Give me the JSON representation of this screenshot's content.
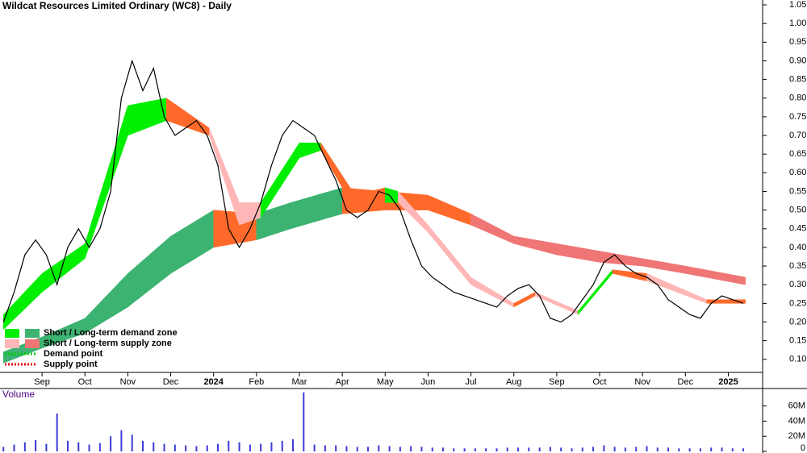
{
  "chart_data": [
    {
      "type": "line",
      "title": "Wildcat Resources Limited Ordinary (WC8) - Daily",
      "xlim": [
        -0.98,
        16.8
      ],
      "xticks": [
        {
          "value": 0,
          "label": "Sep"
        },
        {
          "value": 1,
          "label": "Oct"
        },
        {
          "value": 2,
          "label": "Nov"
        },
        {
          "value": 3,
          "label": "Dec"
        },
        {
          "value": 4,
          "label": "2024"
        },
        {
          "value": 5,
          "label": "Feb"
        },
        {
          "value": 6,
          "label": "Mar"
        },
        {
          "value": 7,
          "label": "Apr"
        },
        {
          "value": 8,
          "label": "May"
        },
        {
          "value": 9,
          "label": "Jun"
        },
        {
          "value": 10,
          "label": "Jul"
        },
        {
          "value": 11,
          "label": "Aug"
        },
        {
          "value": 12,
          "label": "Sep"
        },
        {
          "value": 13,
          "label": "Oct"
        },
        {
          "value": 14,
          "label": "Nov"
        },
        {
          "value": 15,
          "label": "Dec"
        },
        {
          "value": 16,
          "label": "2025"
        }
      ],
      "ylim": [
        0.065,
        1.063
      ],
      "yticks": [
        {
          "value": 0.1,
          "label": "0.10"
        },
        0.15,
        {
          "value": 0.2,
          "label": "0.20"
        },
        0.25,
        {
          "value": 0.3,
          "label": "0.30"
        },
        0.35,
        {
          "value": 0.4,
          "label": "0.40"
        },
        0.45,
        {
          "value": 0.5,
          "label": "0.50"
        },
        0.55,
        {
          "value": 0.6,
          "label": "0.60"
        },
        0.65,
        {
          "value": 0.7,
          "label": "0.70"
        },
        0.75,
        {
          "value": 0.8,
          "label": "0.80"
        },
        0.85,
        {
          "value": 0.9,
          "label": "0.90"
        },
        0.95,
        {
          "value": 1,
          "label": "1.00"
        },
        1.05
      ],
      "series": [
        {
          "name": "Price",
          "color": "#000000",
          "x": [
            -0.9,
            -0.65,
            -0.4,
            -0.15,
            0.1,
            0.35,
            0.6,
            0.85,
            1.1,
            1.35,
            1.6,
            1.85,
            2.1,
            2.35,
            2.6,
            2.85,
            3.1,
            3.35,
            3.6,
            3.85,
            4.1,
            4.35,
            4.6,
            4.85,
            5.1,
            5.35,
            5.6,
            5.85,
            6.1,
            6.35,
            6.6,
            6.85,
            7.1,
            7.35,
            7.6,
            7.85,
            8.1,
            8.35,
            8.6,
            8.85,
            9.1,
            9.35,
            9.6,
            9.85,
            10.1,
            10.35,
            10.6,
            10.85,
            11.1,
            11.35,
            11.6,
            11.85,
            12.1,
            12.35,
            12.6,
            12.85,
            13.1,
            13.35,
            13.6,
            13.85,
            14.1,
            14.35,
            14.6,
            14.85,
            15.1,
            15.35,
            15.6,
            15.85,
            16.1,
            16.35
          ],
          "values": [
            0.2,
            0.28,
            0.38,
            0.42,
            0.38,
            0.3,
            0.4,
            0.45,
            0.4,
            0.45,
            0.55,
            0.8,
            0.9,
            0.82,
            0.88,
            0.75,
            0.7,
            0.72,
            0.74,
            0.7,
            0.62,
            0.45,
            0.4,
            0.45,
            0.52,
            0.62,
            0.7,
            0.74,
            0.72,
            0.7,
            0.64,
            0.58,
            0.5,
            0.48,
            0.5,
            0.55,
            0.54,
            0.5,
            0.42,
            0.35,
            0.32,
            0.3,
            0.28,
            0.27,
            0.26,
            0.25,
            0.24,
            0.27,
            0.29,
            0.3,
            0.27,
            0.21,
            0.2,
            0.22,
            0.26,
            0.3,
            0.36,
            0.38,
            0.35,
            0.33,
            0.32,
            0.3,
            0.26,
            0.24,
            0.22,
            0.21,
            0.25,
            0.27,
            0.26,
            0.25
          ]
        }
      ],
      "bands": [
        {
          "x": [
            -0.9,
            0,
            1,
            2,
            3,
            4,
            5,
            5.8,
            7,
            8,
            9,
            10,
            11,
            12,
            13,
            14,
            15,
            16.4
          ],
          "lower": [
            0.09,
            0.13,
            0.17,
            0.24,
            0.33,
            0.4,
            0.42,
            0.45,
            0.49,
            0.5,
            0.5,
            0.46,
            0.41,
            0.38,
            0.36,
            0.35,
            0.33,
            0.3
          ],
          "upper": [
            0.12,
            0.16,
            0.21,
            0.33,
            0.43,
            0.5,
            0.49,
            0.52,
            0.56,
            0.55,
            0.54,
            0.49,
            0.43,
            0.41,
            0.39,
            0.37,
            0.35,
            0.32
          ],
          "colors": [
            "#3cb371",
            "#3cb371",
            "#3cb371",
            "#3cb371",
            "#3cb371",
            "#ff6a2a",
            "#3cb371",
            "#3cb371",
            "#ff6a2a",
            "#ff6a2a",
            "#ff6a2a",
            "#f07575",
            "#f07575",
            "#f07575",
            "#f07575",
            "#f07575",
            "#f07575",
            "#f07575"
          ]
        },
        {
          "x": [
            -0.9,
            0,
            1,
            2,
            2.9,
            3.9,
            4.6,
            5.1,
            6,
            6.5,
            7.3,
            8,
            8.3,
            9,
            10,
            11,
            11.5,
            12.5,
            13.3,
            14.1,
            15.5,
            16.4
          ],
          "lower": [
            0.18,
            0.28,
            0.37,
            0.7,
            0.74,
            0.7,
            0.46,
            0.48,
            0.64,
            0.66,
            0.5,
            0.52,
            0.52,
            0.44,
            0.3,
            0.24,
            0.27,
            0.22,
            0.33,
            0.31,
            0.25,
            0.25
          ],
          "upper": [
            0.22,
            0.33,
            0.41,
            0.78,
            0.8,
            0.72,
            0.52,
            0.52,
            0.68,
            0.68,
            0.54,
            0.56,
            0.55,
            0.46,
            0.32,
            0.25,
            0.28,
            0.23,
            0.34,
            0.33,
            0.26,
            0.26
          ],
          "colors": [
            "#00ee00",
            "#00ee00",
            "#00ee00",
            "#00ee00",
            "#ff6a2a",
            "#ffb6b6",
            "#ffb6b6",
            "#00ee00",
            "#00ee00",
            "#ff6a2a",
            "#ff6a2a",
            "#00ee00",
            "#ffb6b6",
            "#ffb6b6",
            "#ffb6b6",
            "#ff6a2a",
            "#ffb6b6",
            "#00ee00",
            "#ff6a2a",
            "#ffb6b6",
            "#ff6a2a",
            "#ff6a2a"
          ]
        }
      ],
      "legend": [
        {
          "label": "Short / Long-term demand zone",
          "colors": [
            "#00ee00",
            "#3cb371"
          ]
        },
        {
          "label": "Short / Long-term supply zone",
          "colors": [
            "#ffb6b6",
            "#f07575"
          ]
        },
        {
          "label": "Demand point",
          "colors": [
            "#00cc00"
          ]
        },
        {
          "label": "Supply point",
          "colors": [
            "#dd0000"
          ]
        }
      ]
    },
    {
      "type": "bar",
      "title": "Volume",
      "color": "#3b3bd9",
      "xlim": [
        -0.98,
        16.8
      ],
      "ylim": [
        0,
        81000000
      ],
      "yticks": [
        0,
        {
          "value": 20000000,
          "label": "20M"
        },
        {
          "value": 40000000,
          "label": "40M"
        },
        {
          "value": 60000000,
          "label": "60M"
        }
      ],
      "x": [
        -0.9,
        -0.65,
        -0.4,
        -0.15,
        0.1,
        0.35,
        0.6,
        0.85,
        1.1,
        1.35,
        1.6,
        1.85,
        2.1,
        2.35,
        2.6,
        2.85,
        3.1,
        3.35,
        3.6,
        3.85,
        4.1,
        4.35,
        4.6,
        4.85,
        5.1,
        5.35,
        5.6,
        5.85,
        6.1,
        6.35,
        6.6,
        6.85,
        7.1,
        7.35,
        7.6,
        7.85,
        8.1,
        8.35,
        8.6,
        8.85,
        9.1,
        9.35,
        9.6,
        9.85,
        10.1,
        10.35,
        10.6,
        10.85,
        11.1,
        11.35,
        11.6,
        11.85,
        12.1,
        12.35,
        12.6,
        12.85,
        13.1,
        13.35,
        13.6,
        13.85,
        14.1,
        14.35,
        14.6,
        14.85,
        15.1,
        15.35,
        15.6,
        15.85,
        16.1,
        16.35
      ],
      "values": [
        6000000,
        9000000,
        12000000,
        15000000,
        10000000,
        50000000,
        14000000,
        12000000,
        9000000,
        11000000,
        20000000,
        28000000,
        22000000,
        14000000,
        12000000,
        10000000,
        9000000,
        8000000,
        7000000,
        8000000,
        10000000,
        14000000,
        12000000,
        9000000,
        10000000,
        12000000,
        14000000,
        16000000,
        78000000,
        9000000,
        8000000,
        8000000,
        7000000,
        6000000,
        6000000,
        8000000,
        7000000,
        6000000,
        7000000,
        6000000,
        5000000,
        5000000,
        4000000,
        4000000,
        4000000,
        4000000,
        4000000,
        5000000,
        5000000,
        5000000,
        5000000,
        6000000,
        5000000,
        4000000,
        5000000,
        6000000,
        8000000,
        6000000,
        5000000,
        6000000,
        7000000,
        5000000,
        5000000,
        4000000,
        4000000,
        4000000,
        5000000,
        5000000,
        4000000,
        4000000
      ]
    }
  ]
}
